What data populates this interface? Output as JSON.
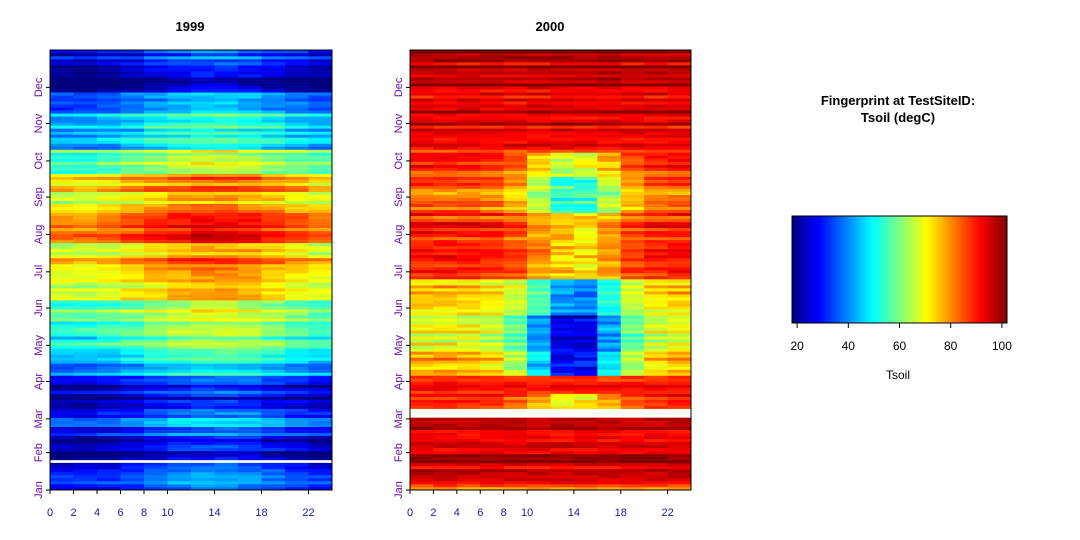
{
  "chart_data": [
    {
      "type": "heatmap",
      "title": "1999",
      "xlabel": "",
      "ylabel": "",
      "x_ticks": [
        "0",
        "2",
        "4",
        "6",
        "8",
        "10",
        "14",
        "18",
        "22"
      ],
      "x_tick_values": [
        0,
        2,
        4,
        6,
        8,
        10,
        14,
        18,
        22
      ],
      "xlim": [
        0,
        24
      ],
      "y_ticks": [
        "Jan",
        "Feb",
        "Mar",
        "Apr",
        "May",
        "Jun",
        "Jul",
        "Aug",
        "Sep",
        "Oct",
        "Nov",
        "Dec"
      ],
      "y_tick_values": [
        1,
        32,
        60,
        91,
        121,
        152,
        182,
        213,
        244,
        274,
        305,
        335
      ],
      "ylim": [
        1,
        366
      ],
      "value_unit": "Tsoil (degC)",
      "zlim": [
        18,
        102
      ],
      "daily_band_profile": [
        {
          "from_day": 1,
          "to_day": 8,
          "value": 38
        },
        {
          "from_day": 8,
          "to_day": 22,
          "value": 36
        },
        {
          "from_day": 22,
          "to_day": 24,
          "value": null
        },
        {
          "from_day": 24,
          "to_day": 45,
          "value": 24
        },
        {
          "from_day": 45,
          "to_day": 60,
          "value": 36
        },
        {
          "from_day": 60,
          "to_day": 68,
          "value": 30
        },
        {
          "from_day": 68,
          "to_day": 78,
          "value": 24
        },
        {
          "from_day": 78,
          "to_day": 96,
          "value": 28
        },
        {
          "from_day": 96,
          "to_day": 118,
          "value": 46
        },
        {
          "from_day": 118,
          "to_day": 140,
          "value": 56
        },
        {
          "from_day": 140,
          "to_day": 158,
          "value": 62
        },
        {
          "from_day": 158,
          "to_day": 178,
          "value": 72
        },
        {
          "from_day": 178,
          "to_day": 192,
          "value": 80
        },
        {
          "from_day": 192,
          "to_day": 205,
          "value": 72
        },
        {
          "from_day": 205,
          "to_day": 230,
          "value": 86
        },
        {
          "from_day": 230,
          "to_day": 248,
          "value": 74
        },
        {
          "from_day": 248,
          "to_day": 262,
          "value": 78
        },
        {
          "from_day": 262,
          "to_day": 282,
          "value": 62
        },
        {
          "from_day": 282,
          "to_day": 312,
          "value": 48
        },
        {
          "from_day": 312,
          "to_day": 330,
          "value": 40
        },
        {
          "from_day": 330,
          "to_day": 352,
          "value": 22
        },
        {
          "from_day": 352,
          "to_day": 366,
          "value": 32
        }
      ],
      "diurnal_amplitude": 6
    },
    {
      "type": "heatmap",
      "title": "2000",
      "xlabel": "",
      "ylabel": "",
      "x_ticks": [
        "0",
        "2",
        "4",
        "6",
        "8",
        "10",
        "14",
        "18",
        "22"
      ],
      "x_tick_values": [
        0,
        2,
        4,
        6,
        8,
        10,
        14,
        18,
        22
      ],
      "xlim": [
        0,
        24
      ],
      "y_ticks": [
        "Jan",
        "Feb",
        "Mar",
        "Apr",
        "May",
        "Jun",
        "Jul",
        "Aug",
        "Sep",
        "Oct",
        "Nov",
        "Dec"
      ],
      "y_tick_values": [
        1,
        32,
        60,
        91,
        121,
        152,
        182,
        213,
        244,
        274,
        305,
        335
      ],
      "ylim": [
        1,
        366
      ],
      "value_unit": "Tsoil (degC)",
      "zlim": [
        18,
        102
      ],
      "daily_band_profile": [
        {
          "from_day": 1,
          "to_day": 6,
          "value": 82
        },
        {
          "from_day": 6,
          "to_day": 60,
          "value": 96
        },
        {
          "from_day": 60,
          "to_day": 67,
          "value": null
        },
        {
          "from_day": 67,
          "to_day": 80,
          "value": 92
        },
        {
          "from_day": 80,
          "to_day": 95,
          "value": 86
        },
        {
          "from_day": 95,
          "to_day": 115,
          "value": 78
        },
        {
          "from_day": 115,
          "to_day": 145,
          "value": 70
        },
        {
          "from_day": 145,
          "to_day": 175,
          "value": 76
        },
        {
          "from_day": 175,
          "to_day": 230,
          "value": 88
        },
        {
          "from_day": 230,
          "to_day": 260,
          "value": 84
        },
        {
          "from_day": 260,
          "to_day": 300,
          "value": 90
        },
        {
          "from_day": 300,
          "to_day": 330,
          "value": 94
        },
        {
          "from_day": 330,
          "to_day": 366,
          "value": 97
        }
      ],
      "midday_dip": [
        {
          "from_day": 60,
          "to_day": 80,
          "value": 70
        },
        {
          "from_day": 95,
          "to_day": 115,
          "value": 28
        },
        {
          "from_day": 115,
          "to_day": 145,
          "value": 22
        },
        {
          "from_day": 145,
          "to_day": 175,
          "value": 40
        },
        {
          "from_day": 175,
          "to_day": 230,
          "value": 72
        },
        {
          "from_day": 230,
          "to_day": 260,
          "value": 52
        },
        {
          "from_day": 260,
          "to_day": 280,
          "value": 66
        }
      ]
    }
  ],
  "legend": {
    "title_line1": "Fingerprint at TestSiteID:",
    "title_line2": "Tsoil (degC)",
    "colorbar_range": [
      18,
      102
    ],
    "colorbar_ticks": [
      "20",
      "40",
      "60",
      "80",
      "100"
    ],
    "colorbar_tick_values": [
      20,
      40,
      60,
      80,
      100
    ],
    "colorbar_label": "Tsoil",
    "colormap": [
      "#00007f",
      "#0000ff",
      "#007fff",
      "#00ffff",
      "#7fff7f",
      "#ffff00",
      "#ff7f00",
      "#ff0000",
      "#7f0000"
    ]
  },
  "colors": {
    "month_tick": "#6a0dad",
    "hour_tick": "#1a1aa8"
  }
}
